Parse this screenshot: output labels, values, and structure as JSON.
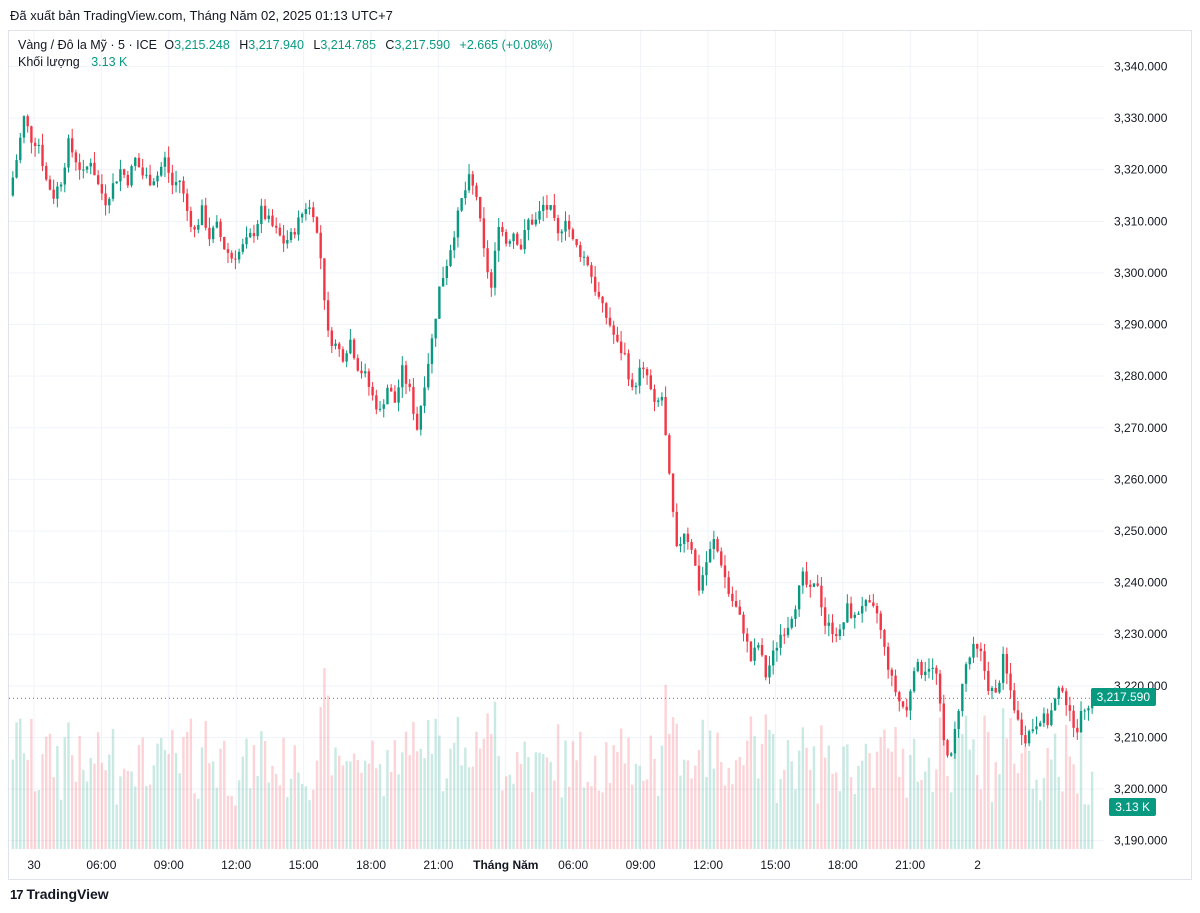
{
  "published_text": "Đã xuất bản TradingView.com, Tháng Năm 02, 2025 01:13 UTC+7",
  "legend": {
    "symbol": "Vàng / Đô la Mỹ · 5 · ICE",
    "open_label": "O",
    "open": "3,215.248",
    "high_label": "H",
    "high": "3,217.940",
    "low_label": "L",
    "low": "3,214.785",
    "close_label": "C",
    "close": "3,217.590",
    "change": "+2.665 (+0.08%)",
    "volume_label": "Khối lượng",
    "volume": "3.13 K"
  },
  "price_tag": "3,217.590",
  "volume_tag": "3.13 K",
  "brand": "TradingView",
  "colors": {
    "up": "#089981",
    "down": "#f23645",
    "grid": "#f0f3fa",
    "axis_text": "#131722"
  },
  "chart_data": {
    "type": "candlestick",
    "y_ticks": [
      "3,340.000",
      "3,330.000",
      "3,320.000",
      "3,310.000",
      "3,300.000",
      "3,290.000",
      "3,280.000",
      "3,270.000",
      "3,260.000",
      "3,250.000",
      "3,240.000",
      "3,230.000",
      "3,220.000",
      "3,210.000",
      "3,200.000",
      "3,190.000"
    ],
    "x_ticks": [
      {
        "label": "30",
        "bold": false
      },
      {
        "label": "06:00",
        "bold": false
      },
      {
        "label": "09:00",
        "bold": false
      },
      {
        "label": "12:00",
        "bold": false
      },
      {
        "label": "15:00",
        "bold": false
      },
      {
        "label": "18:00",
        "bold": false
      },
      {
        "label": "21:00",
        "bold": false
      },
      {
        "label": "Tháng Năm",
        "bold": true
      },
      {
        "label": "06:00",
        "bold": false
      },
      {
        "label": "09:00",
        "bold": false
      },
      {
        "label": "12:00",
        "bold": false
      },
      {
        "label": "15:00",
        "bold": false
      },
      {
        "label": "18:00",
        "bold": false
      },
      {
        "label": "21:00",
        "bold": false
      },
      {
        "label": "2",
        "bold": false
      }
    ],
    "ylim": [
      3188,
      3343
    ],
    "last_price": 3217.59,
    "price_path": [
      3315,
      3322,
      3330,
      3326,
      3325,
      3318,
      3315,
      3318,
      3325,
      3322,
      3319,
      3322,
      3317,
      3314,
      3317,
      3320,
      3318,
      3322,
      3319,
      3318,
      3319,
      3322,
      3317,
      3318,
      3312,
      3308,
      3312,
      3307,
      3309,
      3305,
      3303,
      3304,
      3306,
      3308,
      3312,
      3310,
      3308,
      3306,
      3307,
      3310,
      3313,
      3312,
      3303,
      3288,
      3286,
      3284,
      3287,
      3282,
      3280,
      3276,
      3273,
      3278,
      3275,
      3281,
      3277,
      3270,
      3279,
      3287,
      3297,
      3302,
      3308,
      3314,
      3318,
      3315,
      3304,
      3297,
      3310,
      3306,
      3308,
      3305,
      3310,
      3310,
      3313,
      3312,
      3307,
      3311,
      3306,
      3304,
      3302,
      3297,
      3293,
      3290,
      3286,
      3284,
      3277,
      3281,
      3280,
      3274,
      3276,
      3260,
      3246,
      3250,
      3247,
      3239,
      3244,
      3248,
      3244,
      3238,
      3235,
      3231,
      3225,
      3228,
      3222,
      3226,
      3230,
      3232,
      3236,
      3241,
      3238,
      3240,
      3232,
      3231,
      3230,
      3235,
      3233,
      3236,
      3235,
      3234,
      3227,
      3221,
      3217,
      3215,
      3224,
      3223,
      3224,
      3222,
      3209,
      3206,
      3216,
      3224,
      3227,
      3226,
      3220,
      3218,
      3225,
      3219,
      3213,
      3210,
      3212,
      3214,
      3213,
      3217,
      3220,
      3214,
      3212,
      3216,
      3217.59
    ],
    "volume": {
      "unit": "K",
      "last": "3.13 K"
    }
  }
}
